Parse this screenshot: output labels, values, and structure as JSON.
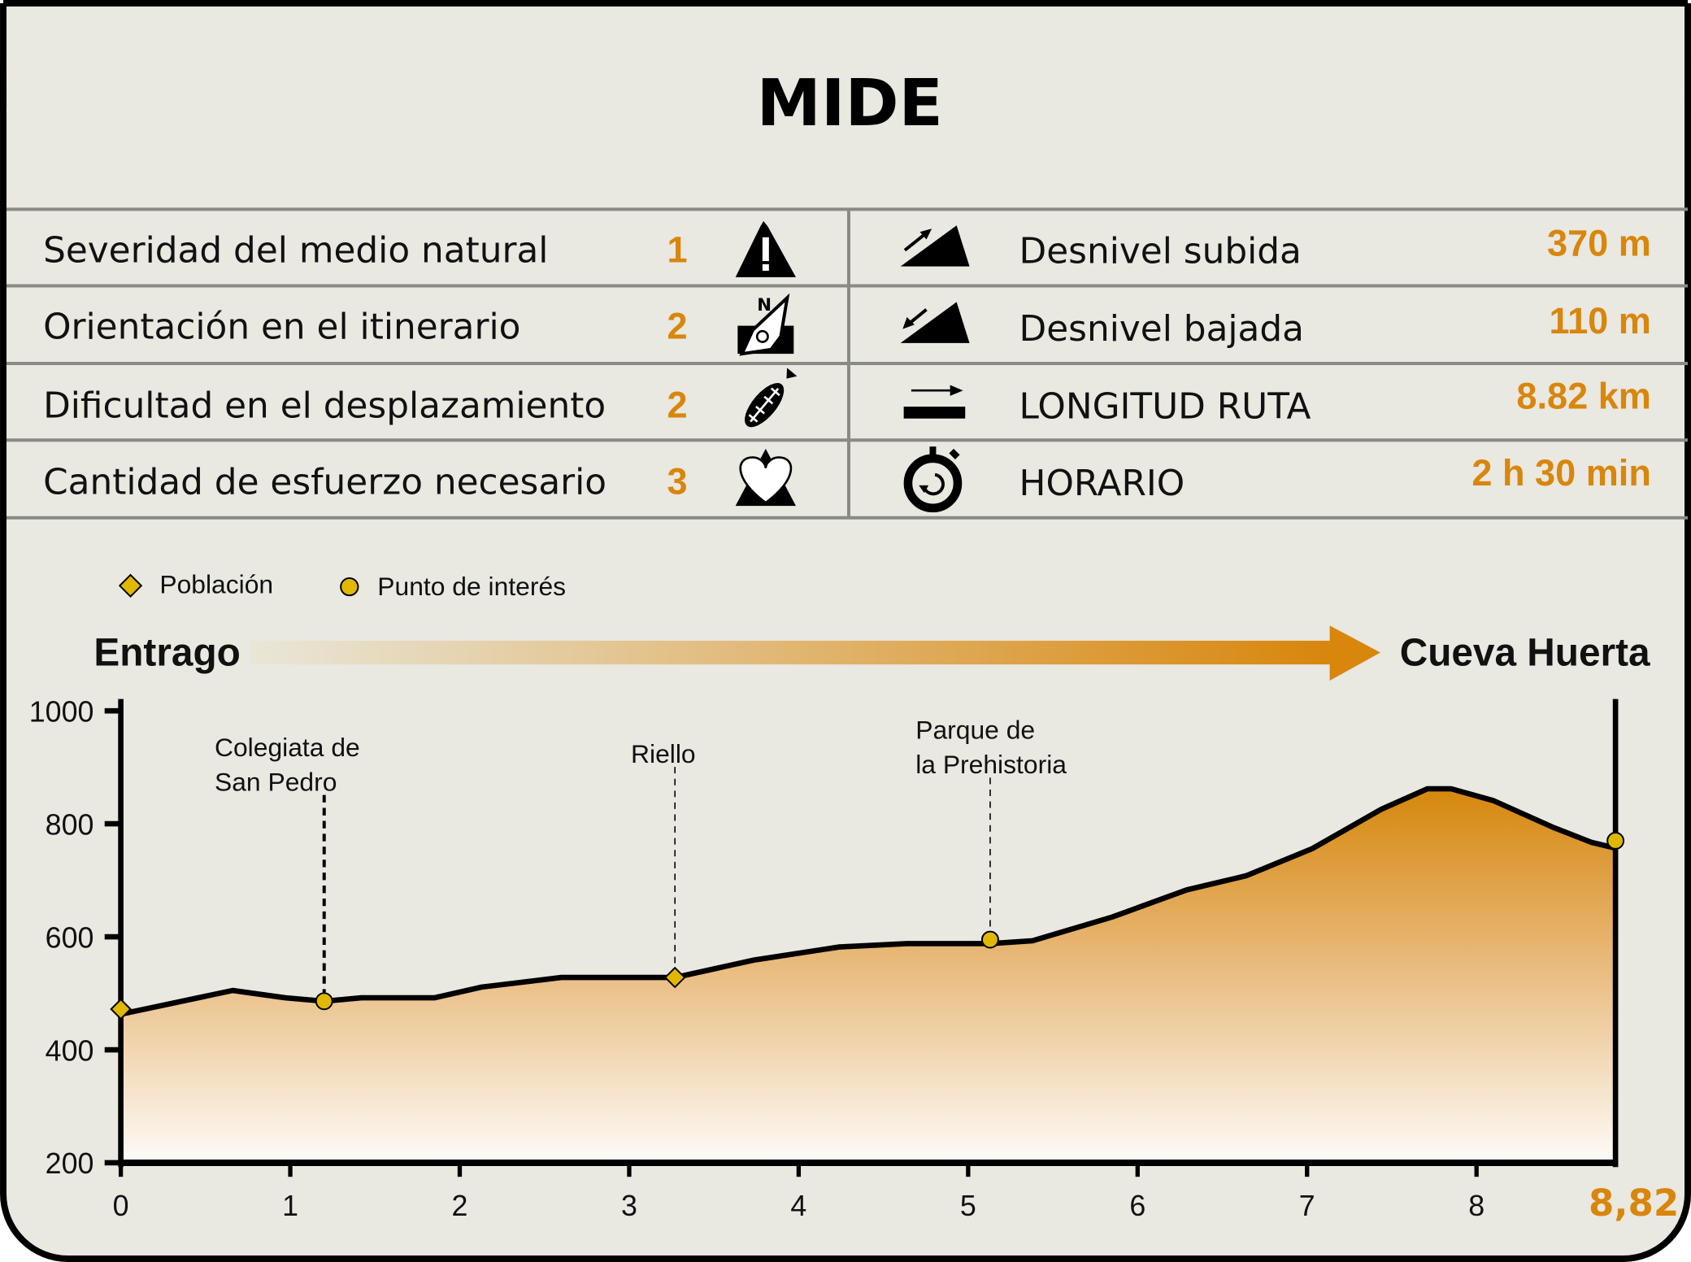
{
  "title": "MIDE",
  "mide": [
    {
      "label": "Severidad del medio natural",
      "value": "1",
      "icon": "mountain-warning-icon"
    },
    {
      "label": "Orientación en el itinerario",
      "value": "2",
      "icon": "compass-orientation-icon"
    },
    {
      "label": "Dificultad en el desplazamiento",
      "value": "2",
      "icon": "boot-sole-icon"
    },
    {
      "label": "Cantidad de esfuerzo necesario",
      "value": "3",
      "icon": "heart-mountain-icon"
    }
  ],
  "stats": [
    {
      "label": "Desnivel subida",
      "value": "370 m",
      "icon": "ascent-icon"
    },
    {
      "label": "Desnivel bajada",
      "value": "110 m",
      "icon": "descent-icon"
    },
    {
      "label": "LONGITUD RUTA",
      "value": "8.82 km",
      "icon": "distance-icon"
    },
    {
      "label": "HORARIO",
      "value": "2 h 30 min",
      "icon": "stopwatch-icon"
    }
  ],
  "legend": {
    "town": "Población",
    "poi": "Punto de interés"
  },
  "route": {
    "start": "Entrago",
    "end": "Cueva Huerta"
  },
  "colors": {
    "accent": "#d8860c",
    "marker": "#e0b800",
    "background": "#e9e8e1"
  },
  "chart_data": {
    "type": "area",
    "xlabel": "",
    "ylabel": "",
    "xlim": [
      0,
      8.82
    ],
    "ylim": [
      200,
      1000
    ],
    "xticks": [
      "0",
      "1",
      "2",
      "3",
      "4",
      "5",
      "6",
      "7",
      "8"
    ],
    "x_end_label": "8,82",
    "yticks": [
      "200",
      "400",
      "600",
      "800",
      "1000"
    ],
    "x": [
      0,
      0.66,
      0.97,
      1.2,
      1.42,
      1.85,
      2.13,
      2.6,
      3.27,
      3.74,
      4.24,
      4.64,
      5.13,
      5.38,
      5.85,
      6.29,
      6.64,
      7.03,
      7.44,
      7.71,
      7.85,
      8.1,
      8.45,
      8.68,
      8.82
    ],
    "y": [
      463,
      505,
      492,
      486,
      492,
      492,
      511,
      528,
      528,
      559,
      582,
      588,
      588,
      593,
      635,
      683,
      708,
      756,
      826,
      862,
      862,
      841,
      794,
      767,
      757
    ],
    "markers": [
      {
        "type": "town",
        "x": 0,
        "y": 472,
        "label": ""
      },
      {
        "type": "poi",
        "x": 1.2,
        "y": 486,
        "label": [
          "Colegiata de",
          "San Pedro"
        ]
      },
      {
        "type": "town",
        "x": 3.27,
        "y": 528,
        "label": [
          "Riello"
        ]
      },
      {
        "type": "poi",
        "x": 5.13,
        "y": 595,
        "label": [
          "Parque de",
          "la Prehistoria"
        ]
      },
      {
        "type": "poi",
        "x": 8.82,
        "y": 770,
        "label": ""
      }
    ]
  }
}
